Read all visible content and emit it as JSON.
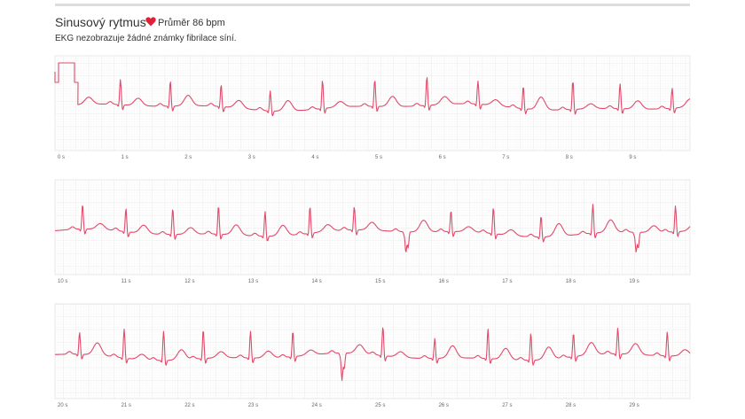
{
  "header": {
    "title": "Sinusový rytmus",
    "average": "Průměr 86 bpm",
    "description": "EKG nezobrazuje žádné známky fibrilace síní."
  },
  "strips": [
    {
      "time_labels": [
        "0 s",
        "1 s",
        "2 s",
        "3 s",
        "4 s",
        "5 s",
        "6 s",
        "7 s",
        "8 s",
        "9 s"
      ]
    },
    {
      "time_labels": [
        "10 s",
        "11 s",
        "12 s",
        "13 s",
        "14 s",
        "15 s",
        "16 s",
        "17 s",
        "18 s",
        "19 s"
      ]
    },
    {
      "time_labels": [
        "20 s",
        "21 s",
        "22 s",
        "23 s",
        "24 s",
        "25 s",
        "26 s",
        "27 s",
        "28 s",
        "29 s"
      ]
    }
  ]
}
